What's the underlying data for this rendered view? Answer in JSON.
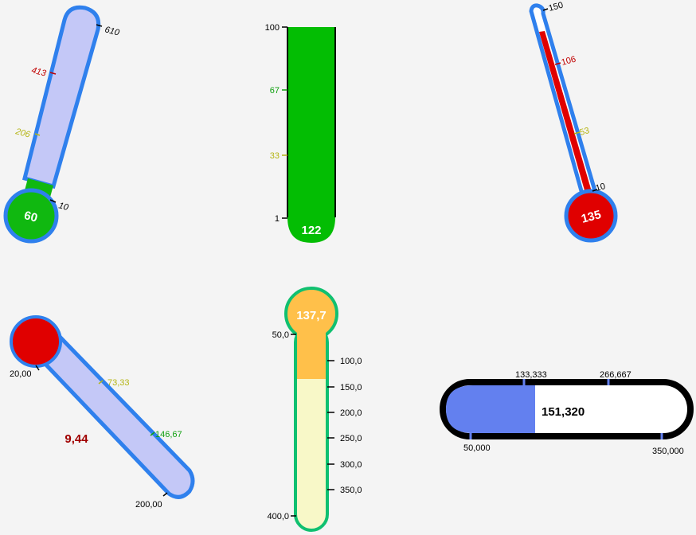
{
  "gauges": [
    {
      "id": "g1",
      "value_label": "60",
      "ticks": [
        "10",
        "206",
        "413",
        "610"
      ],
      "tick_colors": [
        "#000000",
        "#b5b515",
        "#c00000",
        "#000000"
      ],
      "fill_color": "#10b810",
      "tube_color": "#c4c8f7",
      "border_color": "#2f80ed"
    },
    {
      "id": "g2",
      "value_label": "122",
      "ticks": [
        "1",
        "33",
        "67",
        "100"
      ],
      "tick_colors": [
        "#000000",
        "#b5b515",
        "#10a010",
        "#000000"
      ],
      "fill_color": "#03bd03",
      "border_color": "#000000"
    },
    {
      "id": "g3",
      "value_label": "135",
      "ticks": [
        "10",
        "53",
        "106",
        "150"
      ],
      "tick_colors": [
        "#000000",
        "#b5b515",
        "#c00000",
        "#000000"
      ],
      "fill_color": "#e00000",
      "tube_color": "#ffffff",
      "border_color": "#2f80ed"
    },
    {
      "id": "g4",
      "value_label": "9,44",
      "value_color": "#a00000",
      "ticks": [
        "20,00",
        "73,33",
        "146,67",
        "200,00"
      ],
      "tick_colors": [
        "#000000",
        "#b5b515",
        "#10a010",
        "#000000"
      ],
      "fill_color": "#e00000",
      "tube_color": "#c4c8f7",
      "border_color": "#2f80ed"
    },
    {
      "id": "g5",
      "value_label": "137,7",
      "ticks": [
        "50,0",
        "100,0",
        "150,0",
        "200,0",
        "250,0",
        "300,0",
        "350,0",
        "400,0"
      ],
      "fill_color": "#ffc04a",
      "tube_color": "#f8f8c8",
      "border_color": "#10c070"
    },
    {
      "id": "g6",
      "value_label": "151,320",
      "ticks": [
        "50,000",
        "133,333",
        "266,667",
        "350,000"
      ],
      "fill_color": "#6380ef",
      "tube_color": "#ffffff",
      "border_color": "#000000",
      "tick_color": "#6380ef"
    }
  ]
}
